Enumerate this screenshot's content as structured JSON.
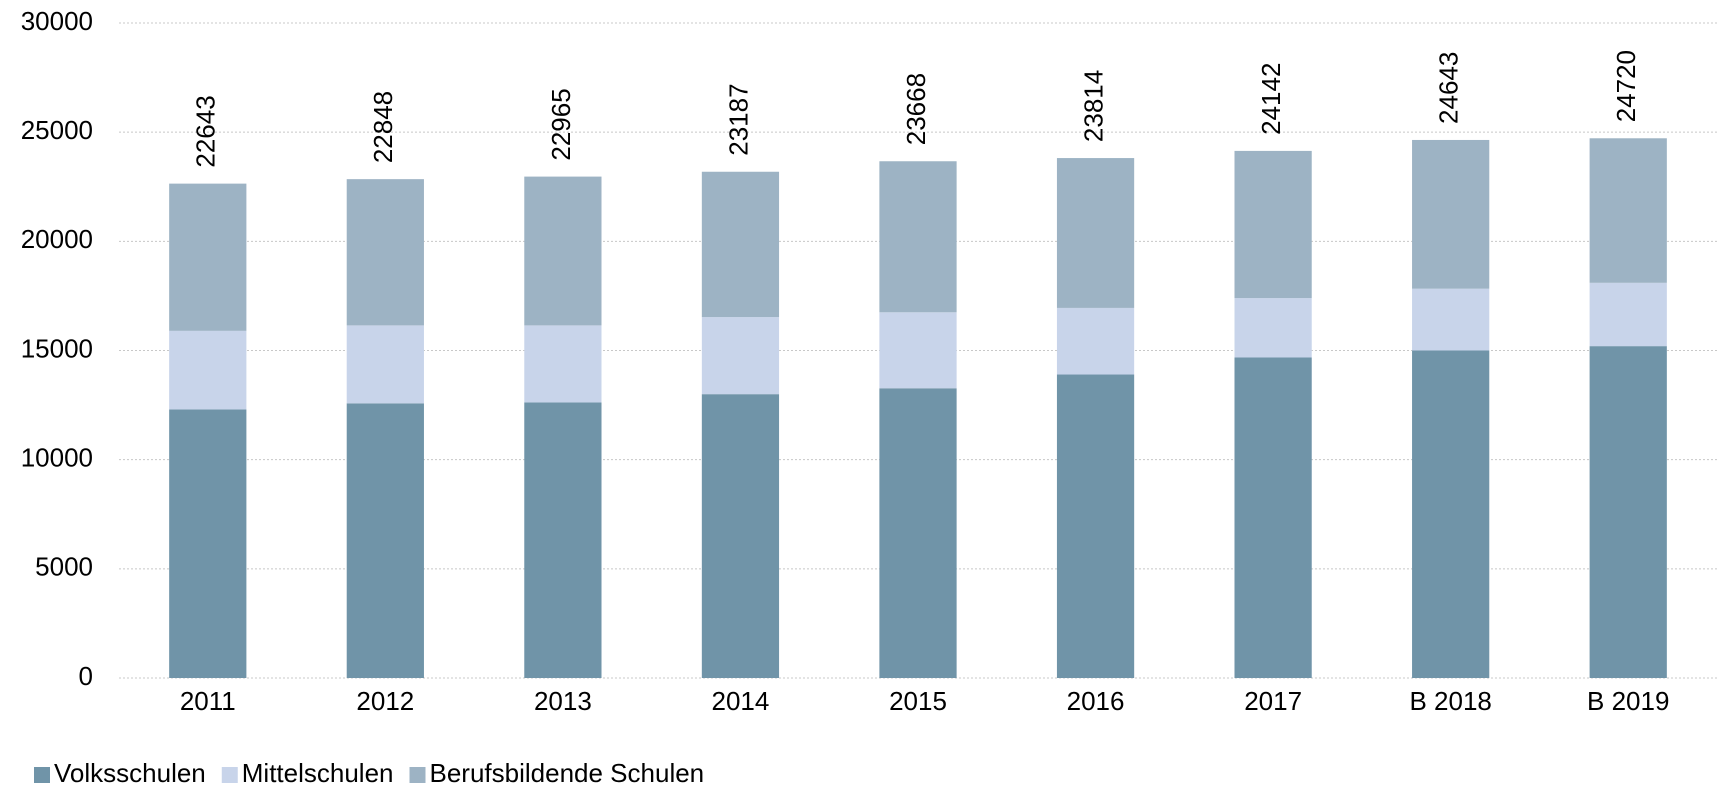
{
  "chart_data": {
    "type": "stacked_bar",
    "categories": [
      "2011",
      "2012",
      "2013",
      "2014",
      "2015",
      "2016",
      "2017",
      "B 2018",
      "B 2019"
    ],
    "series": [
      {
        "name": "Volksschulen",
        "color": "#7094a8",
        "values": [
          12300,
          12580,
          12620,
          13000,
          13270,
          13900,
          14680,
          15000,
          15200
        ]
      },
      {
        "name": "Mittelschulen",
        "color": "#c8d4ea",
        "values": [
          3600,
          3570,
          3530,
          3530,
          3480,
          3050,
          2720,
          2830,
          2900
        ]
      },
      {
        "name": "Berufsbildende Schulen",
        "color": "#9db3c4",
        "values": [
          6743,
          6698,
          6815,
          6657,
          6918,
          6864,
          6742,
          6813,
          6620
        ]
      }
    ],
    "totals": [
      22643,
      22848,
      22965,
      23187,
      23668,
      23814,
      24142,
      24643,
      24720
    ],
    "ylim": [
      0,
      30000
    ],
    "yticks": [
      0,
      5000,
      10000,
      15000,
      20000,
      25000,
      30000
    ],
    "grid": true,
    "legend": "bottom-left"
  }
}
